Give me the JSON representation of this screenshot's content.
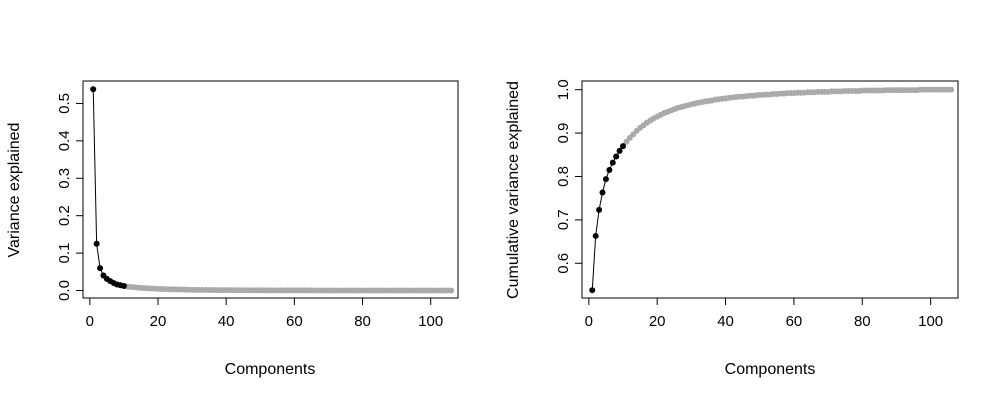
{
  "chart_data": [
    {
      "type": "line",
      "xlabel": "Components",
      "ylabel": "Variance explained",
      "xlim": [
        -2,
        108
      ],
      "ylim": [
        -0.02,
        0.56
      ],
      "xticks": [
        0,
        20,
        40,
        60,
        80,
        100
      ],
      "yticks": [
        0.0,
        0.1,
        0.2,
        0.3,
        0.4,
        0.5
      ],
      "highlight_count": 10,
      "colors": {
        "highlight": "#000000",
        "rest": "#aaaaaa",
        "line": "#000000"
      },
      "n_components": 106,
      "values": [
        0.538,
        0.125,
        0.06,
        0.04,
        0.031,
        0.025,
        0.02,
        0.016,
        0.014,
        0.012,
        0.0105,
        0.0095,
        0.0086,
        0.0078,
        0.0071,
        0.0065,
        0.0059,
        0.0054,
        0.0049,
        0.0045,
        0.0041,
        0.0038,
        0.0035,
        0.0032,
        0.0029,
        0.0027,
        0.0025,
        0.0023,
        0.0021,
        0.0019,
        0.0018,
        0.0017,
        0.0016,
        0.0015,
        0.0014,
        0.0013,
        0.0012,
        0.0011,
        0.001,
        0.001,
        0.0009,
        0.0009,
        0.0008,
        0.0008,
        0.0007,
        0.0007,
        0.0007,
        0.0006,
        0.0006,
        0.0006,
        0.0005,
        0.0005,
        0.0005,
        0.0005,
        0.0004,
        0.0004,
        0.0004,
        0.0004,
        0.0004,
        0.0003,
        0.0003,
        0.0003,
        0.0003,
        0.0003,
        0.0003,
        0.0003,
        0.0002,
        0.0002,
        0.0002,
        0.0002,
        0.0002,
        0.0002,
        0.0002,
        0.0002,
        0.0002,
        0.0002,
        0.0001,
        0.0001,
        0.0001,
        0.0001,
        0.0001,
        0.0001,
        0.0001,
        0.0001,
        0.0001,
        0.0001,
        0.0001,
        0.0001,
        0.0001,
        0.0001,
        0.0001,
        0.0001,
        0.0001,
        0.0001,
        0.0001,
        0.0001,
        0.0001,
        0.0001,
        0.0001,
        0.0001,
        0.0001,
        0.0001,
        0.0001,
        0.0001,
        0.0001,
        0.0001
      ]
    },
    {
      "type": "line",
      "xlabel": "Components",
      "ylabel": "Cumulative variance explained",
      "xlim": [
        -2,
        108
      ],
      "ylim": [
        0.52,
        1.02
      ],
      "xticks": [
        0,
        20,
        40,
        60,
        80,
        100
      ],
      "yticks": [
        0.6,
        0.7,
        0.8,
        0.9,
        1.0
      ],
      "highlight_count": 10,
      "colors": {
        "highlight": "#000000",
        "rest": "#aaaaaa",
        "line": "#000000"
      },
      "n_components": 106,
      "values": [
        0.538,
        0.663,
        0.723,
        0.763,
        0.794,
        0.815,
        0.832,
        0.846,
        0.859,
        0.87,
        0.88,
        0.889,
        0.897,
        0.905,
        0.912,
        0.918,
        0.924,
        0.929,
        0.934,
        0.938,
        0.942,
        0.946,
        0.949,
        0.952,
        0.955,
        0.958,
        0.96,
        0.962,
        0.964,
        0.966,
        0.968,
        0.97,
        0.971,
        0.973,
        0.974,
        0.975,
        0.977,
        0.978,
        0.979,
        0.98,
        0.981,
        0.982,
        0.983,
        0.984,
        0.984,
        0.985,
        0.986,
        0.986,
        0.987,
        0.988,
        0.988,
        0.989,
        0.989,
        0.99,
        0.99,
        0.991,
        0.991,
        0.992,
        0.992,
        0.992,
        0.993,
        0.993,
        0.993,
        0.994,
        0.994,
        0.994,
        0.995,
        0.995,
        0.995,
        0.995,
        0.996,
        0.996,
        0.996,
        0.996,
        0.997,
        0.997,
        0.997,
        0.997,
        0.997,
        0.998,
        0.998,
        0.998,
        0.998,
        0.998,
        0.998,
        0.998,
        0.999,
        0.999,
        0.999,
        0.999,
        0.999,
        0.999,
        0.999,
        0.999,
        0.999,
        0.999,
        1.0,
        1.0,
        1.0,
        1.0,
        1.0,
        1.0,
        1.0,
        1.0,
        1.0,
        1.0
      ]
    }
  ]
}
